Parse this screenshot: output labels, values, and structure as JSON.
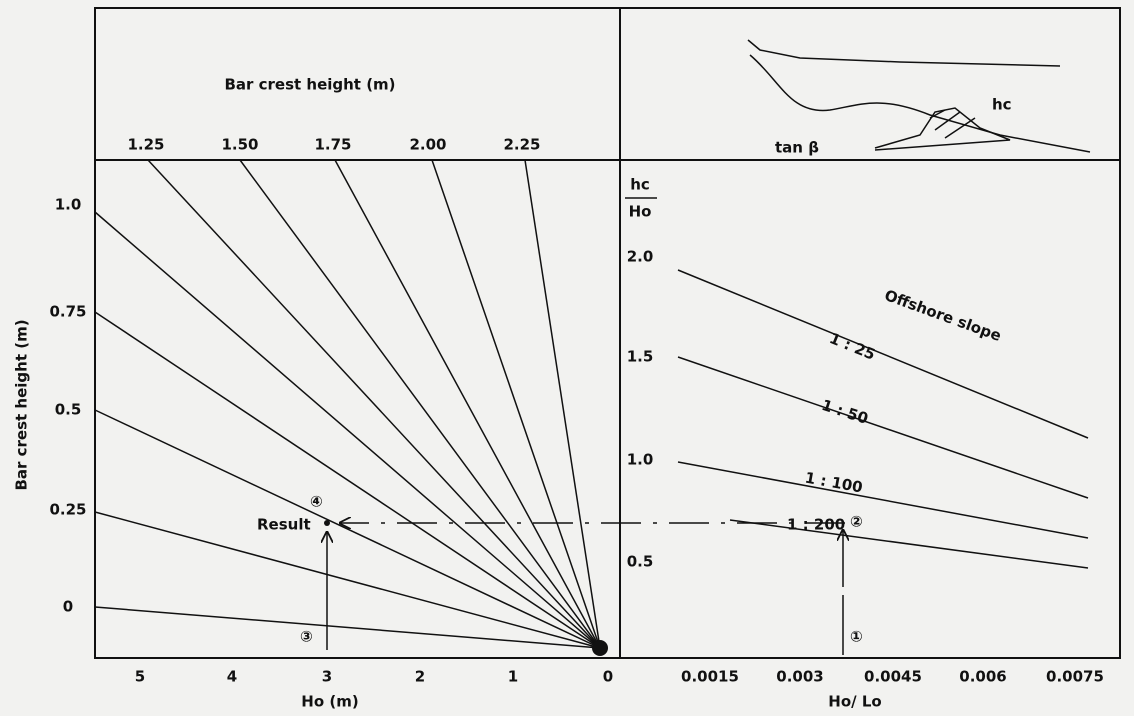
{
  "top_left": {
    "title": "Bar crest height  (m)",
    "ray_labels": [
      "1.25",
      "1.50",
      "1.75",
      "2.00",
      "2.25"
    ]
  },
  "top_right": {
    "labels": [
      "hc",
      "tan β"
    ]
  },
  "left_panel": {
    "y_axis_label": "Bar crest height  (m)",
    "y_ticks": [
      "1.0",
      "0.75",
      "0.5",
      "0.25",
      "0"
    ],
    "x_ticks": [
      "5",
      "4",
      "3",
      "2",
      "1",
      "0"
    ],
    "x_axis_label": "Ho  (m)",
    "result": "Result",
    "markers": [
      "④",
      "③"
    ]
  },
  "right_panel": {
    "y_axis_label_top": "hc",
    "y_axis_label_bottom": "Ho",
    "y_ticks": [
      "2.0",
      "1.5",
      "1.0",
      "0.5"
    ],
    "x_ticks": [
      "0.0015",
      "0.003",
      "0.0045",
      "0.006",
      "0.0075"
    ],
    "x_axis_label": "Ho/ Lo",
    "legend_title": "Offshore slope",
    "slopes": [
      "1 : 25",
      "1 : 50",
      "1 : 100",
      "1 : 200"
    ],
    "markers": [
      "②",
      "①"
    ]
  }
}
